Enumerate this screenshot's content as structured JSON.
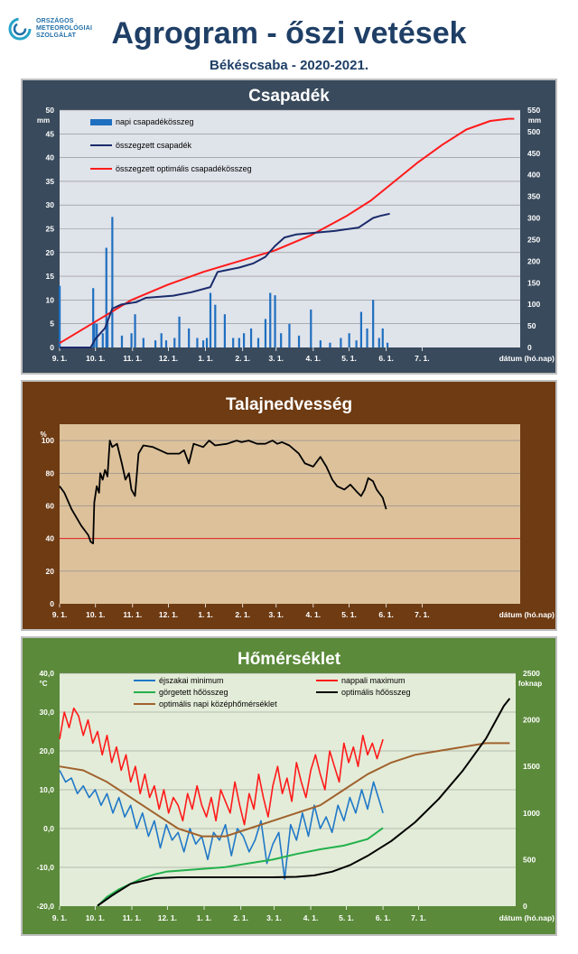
{
  "header": {
    "logo_lines": [
      "ORSZÁGOS",
      "METEOROLÓGIAI",
      "SZOLGÁLAT"
    ],
    "title": "Agrogram - őszi vetések",
    "subtitle": "Békéscsaba - 2020-2021."
  },
  "colors": {
    "panel1_bg": "#394a5c",
    "panel1_plot": "#dfe3ea",
    "panel2_bg": "#6e3b13",
    "panel2_plot": "#dcc19b",
    "panel3_bg": "#5b8a3a",
    "panel3_plot": "#e3ecd8",
    "rain_bar": "#1f6fc0",
    "sum_line": "#1b2b6b",
    "opt_line": "#ff1a1a",
    "tmin": "#1f78c8",
    "tmax": "#ff1a1a",
    "gdd": "#22b14c",
    "opt_gdd": "#000000",
    "opt_tavg": "#a0622d"
  },
  "chart_data": [
    {
      "type": "bar",
      "title": "Csapadék",
      "y_unit": "mm",
      "y2_unit": "mm",
      "ylim": [
        0,
        50
      ],
      "y_ticks": [
        0,
        5,
        10,
        15,
        20,
        25,
        30,
        35,
        40,
        45,
        50
      ],
      "y2lim": [
        0,
        550
      ],
      "y2_ticks": [
        0,
        50,
        100,
        150,
        200,
        250,
        300,
        350,
        400,
        450,
        500,
        550
      ],
      "x_tick_labels": [
        "9. 1.",
        "10. 1.",
        "11. 1.",
        "12. 1.",
        "1. 1.",
        "2. 1.",
        "3. 1.",
        "4. 1.",
        "5. 1.",
        "6. 1.",
        "7. 1."
      ],
      "x_axis_label": "dátum (hó.nap)",
      "grid": true,
      "legend": [
        "napi csapadékösszeg",
        "összegzett csapadék",
        "összegzett optimális csapadékösszeg"
      ],
      "series": [
        {
          "name": "napi csapadékösszeg",
          "kind": "bar",
          "x": [
            0,
            28,
            29,
            31,
            36,
            39,
            40,
            44,
            52,
            60,
            63,
            70,
            80,
            85,
            89,
            96,
            100,
            108,
            115,
            120,
            123,
            126,
            130,
            138,
            145,
            150,
            154,
            160,
            166,
            172,
            176,
            180,
            185,
            192,
            200,
            210,
            218,
            226,
            235,
            242,
            248,
            252,
            257,
            262,
            267,
            270,
            274
          ],
          "values": [
            13,
            12.5,
            5.5,
            5,
            3,
            21,
            6,
            27.5,
            2.5,
            3,
            7,
            2,
            1.5,
            3,
            1.5,
            2,
            6.5,
            4,
            2,
            1.5,
            2,
            11.5,
            9,
            7,
            2,
            2,
            3,
            4,
            2,
            6,
            11.5,
            11,
            3,
            5,
            2.5,
            8,
            1.5,
            1,
            2,
            3,
            1.5,
            7.5,
            4,
            10,
            2,
            4,
            1
          ]
        },
        {
          "name": "összegzett csapadék",
          "kind": "line",
          "axis": "right",
          "x": [
            0,
            26,
            30,
            38,
            44,
            52,
            64,
            72,
            95,
            110,
            126,
            132,
            150,
            162,
            172,
            180,
            188,
            198,
            210,
            230,
            250,
            262,
            268,
            276
          ],
          "values": [
            0,
            0,
            20,
            45,
            90,
            100,
            105,
            115,
            120,
            128,
            140,
            175,
            185,
            195,
            210,
            235,
            255,
            262,
            265,
            270,
            278,
            300,
            305,
            310
          ]
        },
        {
          "name": "összegzett optimális csapadékösszeg",
          "kind": "line",
          "axis": "right",
          "x": [
            0,
            30,
            60,
            90,
            120,
            150,
            180,
            210,
            240,
            260,
            280,
            300,
            320,
            340,
            360,
            375,
            380
          ],
          "values": [
            10,
            60,
            110,
            145,
            175,
            200,
            225,
            260,
            305,
            340,
            385,
            430,
            470,
            505,
            525,
            530,
            530
          ]
        }
      ]
    },
    {
      "type": "line",
      "title": "Talajnedvesség",
      "y_unit": "%",
      "ylim": [
        0,
        110
      ],
      "y_ticks": [
        0,
        20,
        40,
        60,
        80,
        100
      ],
      "x_tick_labels": [
        "9. 1.",
        "10. 1.",
        "11. 1.",
        "12. 1.",
        "1. 1.",
        "2. 1.",
        "3. 1.",
        "4. 1.",
        "5. 1.",
        "6. 1.",
        "7. 1."
      ],
      "x_axis_label": "dátum (hó.nap)",
      "grid": true,
      "threshold": 40,
      "series": [
        {
          "name": "",
          "x": [
            0,
            4,
            10,
            18,
            24,
            26,
            28,
            29,
            31,
            33,
            34,
            36,
            38,
            40,
            42,
            44,
            48,
            52,
            55,
            58,
            60,
            63,
            66,
            70,
            78,
            90,
            100,
            104,
            108,
            112,
            120,
            125,
            130,
            140,
            148,
            152,
            158,
            165,
            172,
            178,
            182,
            186,
            192,
            200,
            205,
            212,
            218,
            223,
            228,
            232,
            238,
            243,
            248,
            252,
            255,
            258,
            262,
            265,
            270,
            273
          ],
          "values": [
            72,
            68,
            58,
            48,
            42,
            38,
            37,
            62,
            72,
            68,
            80,
            76,
            82,
            78,
            100,
            96,
            98,
            86,
            76,
            80,
            70,
            66,
            92,
            97,
            96,
            92,
            92,
            94,
            86,
            98,
            96,
            100,
            97,
            98,
            100,
            99,
            100,
            98,
            98,
            100,
            98,
            99,
            97,
            92,
            86,
            84,
            90,
            84,
            76,
            72,
            70,
            73,
            69,
            66,
            70,
            77,
            75,
            70,
            65,
            58
          ]
        }
      ]
    },
    {
      "type": "line",
      "title": "Hőmérséklet",
      "y_unit": "°C",
      "y2_unit": "foknap",
      "ylim": [
        -20,
        40
      ],
      "y_ticks": [
        -20,
        -10,
        0,
        10,
        20,
        30,
        40
      ],
      "y_tick_labels": [
        "-20,0",
        "-10,0",
        "0,0",
        "10,0",
        "20,0",
        "30,0",
        "40,0"
      ],
      "y2lim": [
        0,
        2500
      ],
      "y2_ticks": [
        0,
        500,
        1000,
        1500,
        2000,
        2500
      ],
      "x_tick_labels": [
        "9. 1.",
        "10. 1.",
        "11. 1.",
        "12. 1.",
        "1. 1.",
        "2. 1.",
        "3. 1.",
        "4. 1.",
        "5. 1.",
        "6. 1.",
        "7. 1."
      ],
      "x_axis_label": "dátum (hó.nap)",
      "grid": true,
      "legend": [
        "éjszakai minimum",
        "nappali maximum",
        "görgetett hőösszeg",
        "optimális hőösszeg",
        "optimális napi középhőmérséklet"
      ],
      "series": [
        {
          "name": "éjszakai minimum",
          "axis": "left",
          "x": [
            0,
            5,
            10,
            15,
            20,
            25,
            30,
            35,
            40,
            45,
            50,
            55,
            60,
            65,
            70,
            75,
            80,
            85,
            90,
            95,
            100,
            105,
            110,
            115,
            120,
            125,
            130,
            135,
            140,
            145,
            150,
            155,
            160,
            165,
            170,
            175,
            180,
            185,
            190,
            195,
            200,
            205,
            210,
            215,
            220,
            225,
            230,
            235,
            240,
            245,
            250,
            255,
            260,
            265,
            270,
            273
          ],
          "values": [
            15,
            12,
            13,
            9,
            11,
            8,
            10,
            6,
            9,
            4,
            8,
            3,
            6,
            0,
            4,
            -2,
            2,
            -5,
            1,
            -3,
            -1,
            -6,
            0,
            -4,
            -2,
            -8,
            -1,
            -3,
            1,
            -7,
            0,
            -2,
            -6,
            -3,
            2,
            -9,
            -4,
            -1,
            -13,
            1,
            -3,
            4,
            -2,
            6,
            0,
            3,
            -1,
            6,
            2,
            8,
            4,
            10,
            5,
            12,
            7,
            4
          ]
        },
        {
          "name": "nappali maximum",
          "axis": "left",
          "x": [
            0,
            4,
            8,
            12,
            16,
            20,
            24,
            28,
            32,
            36,
            40,
            44,
            48,
            52,
            56,
            60,
            64,
            68,
            72,
            76,
            80,
            84,
            88,
            92,
            96,
            100,
            104,
            108,
            112,
            116,
            120,
            124,
            128,
            132,
            136,
            140,
            144,
            148,
            152,
            156,
            160,
            164,
            168,
            172,
            176,
            180,
            184,
            188,
            192,
            196,
            200,
            204,
            208,
            212,
            216,
            220,
            224,
            228,
            232,
            236,
            240,
            244,
            248,
            252,
            256,
            260,
            264,
            268,
            273
          ],
          "values": [
            23,
            30,
            26,
            31,
            29,
            24,
            28,
            22,
            25,
            19,
            24,
            17,
            21,
            15,
            19,
            12,
            16,
            9,
            14,
            8,
            11,
            5,
            10,
            4,
            8,
            6,
            2,
            9,
            5,
            11,
            6,
            3,
            8,
            2,
            10,
            7,
            4,
            12,
            6,
            1,
            9,
            5,
            14,
            8,
            3,
            11,
            16,
            9,
            13,
            7,
            17,
            12,
            8,
            15,
            19,
            14,
            10,
            20,
            16,
            12,
            22,
            17,
            21,
            16,
            24,
            19,
            22,
            18,
            23
          ]
        },
        {
          "name": "optimális napi középhőmérséklet",
          "axis": "left",
          "x": [
            0,
            20,
            40,
            60,
            80,
            100,
            120,
            140,
            160,
            180,
            200,
            220,
            240,
            260,
            280,
            300,
            320,
            340,
            360,
            375,
            380
          ],
          "values": [
            16,
            15,
            12,
            8,
            4,
            0,
            -2,
            -2,
            0,
            2,
            4,
            6,
            10,
            14,
            17,
            19,
            20,
            21,
            22,
            22,
            22
          ]
        },
        {
          "name": "görgetett hőösszeg",
          "axis": "right",
          "x": [
            32,
            40,
            50,
            60,
            70,
            80,
            90,
            100,
            120,
            140,
            160,
            180,
            200,
            220,
            240,
            260,
            273
          ],
          "values": [
            0,
            100,
            180,
            240,
            300,
            340,
            370,
            380,
            400,
            420,
            460,
            500,
            560,
            610,
            650,
            720,
            840
          ]
        },
        {
          "name": "optimális hőösszeg",
          "axis": "right",
          "x": [
            32,
            45,
            60,
            80,
            100,
            120,
            140,
            160,
            180,
            200,
            215,
            230,
            245,
            260,
            280,
            300,
            320,
            340,
            360,
            375,
            380
          ],
          "values": [
            5,
            120,
            240,
            300,
            310,
            310,
            310,
            310,
            310,
            315,
            330,
            370,
            440,
            540,
            700,
            900,
            1150,
            1450,
            1800,
            2150,
            2230
          ]
        }
      ]
    }
  ]
}
